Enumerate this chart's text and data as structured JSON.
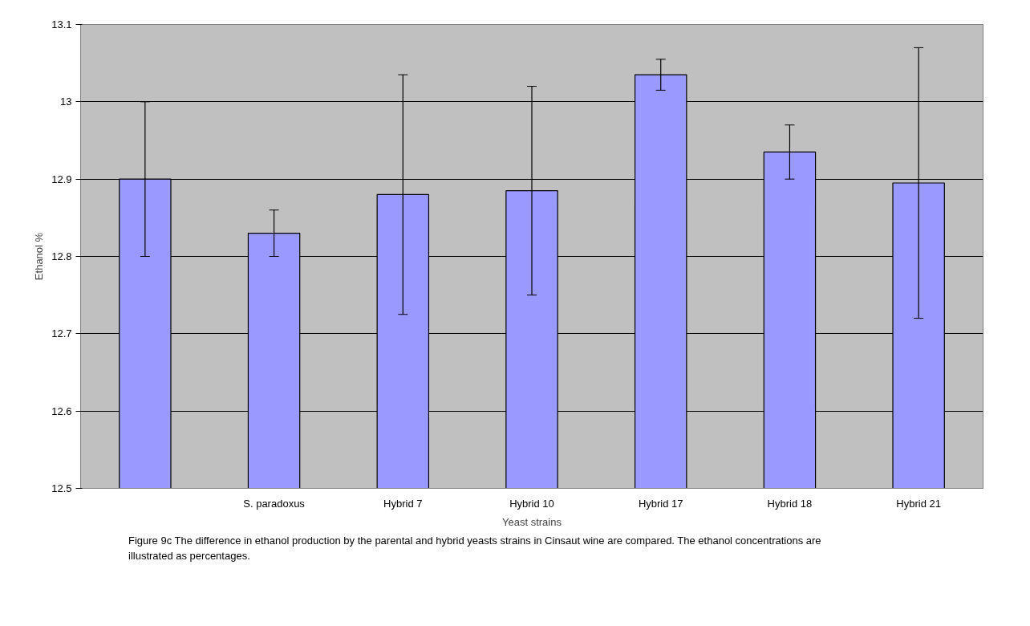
{
  "chart_data": {
    "type": "bar",
    "xlabel": "Yeast strains",
    "ylabel": "Ethanol %",
    "categories": [
      null,
      "S. paradoxus",
      "Hybrid 7",
      "Hybrid 10",
      "Hybrid 17",
      "Hybrid 18",
      "Hybrid 21"
    ],
    "values": [
      12.9,
      12.83,
      12.88,
      12.885,
      13.035,
      12.935,
      12.895
    ],
    "errors": [
      0.1,
      0.03,
      0.155,
      0.135,
      0.02,
      0.035,
      0.175
    ],
    "color": "#9999ff",
    "ylim": [
      12.5,
      13.1
    ],
    "yticks": [
      12.5,
      12.6,
      12.7,
      12.8,
      12.9,
      13,
      13.1
    ],
    "grid": "y",
    "annotations": [
      "Figure 9c The difference in ethanol production by the parental and hybrid yeasts strains in Cinsaut wine are compared. The ethanol concentrations are illustrated as percentages."
    ]
  }
}
